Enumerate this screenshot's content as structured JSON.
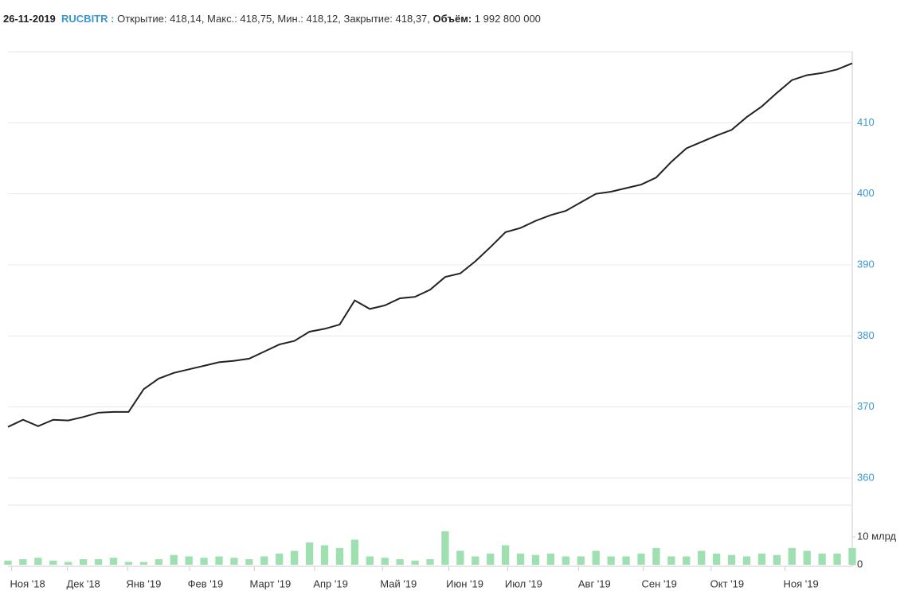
{
  "header": {
    "date": "26-11-2019",
    "ticker": "RUCBITR :",
    "ohlc": "Открытие: 418,14, Макс.: 418,75, Мин.: 418,12, Закрытие: 418,37,",
    "volume_label": "Объём:",
    "volume": "1 992 800 000"
  },
  "chart_data": [
    {
      "type": "line",
      "x": [
        0,
        1,
        2,
        3,
        4,
        5,
        6,
        7,
        8,
        9,
        10,
        11,
        12,
        13,
        14,
        15,
        16,
        17,
        18,
        19,
        20,
        21,
        22,
        23,
        24,
        25,
        26,
        27,
        28,
        29,
        30,
        31,
        32,
        33,
        34,
        35,
        36,
        37,
        38,
        39,
        40,
        41,
        42,
        43,
        44,
        45,
        46,
        47,
        48,
        49,
        50,
        51,
        52,
        53,
        54,
        55,
        56
      ],
      "series": [
        {
          "name": "RUCBITR",
          "color": "#222222",
          "values": [
            367.2,
            368.2,
            367.3,
            368.2,
            368.1,
            368.6,
            369.2,
            369.3,
            369.3,
            372.5,
            374,
            374.8,
            375.3,
            375.8,
            376.3,
            376.5,
            376.8,
            377.8,
            378.8,
            379.3,
            380.6,
            381,
            381.6,
            385,
            383.8,
            384.3,
            385.3,
            385.5,
            386.5,
            388.3,
            388.8,
            390.5,
            392.5,
            394.6,
            395.2,
            396.2,
            397,
            397.6,
            398.8,
            400,
            400.3,
            400.8,
            401.3,
            402.3,
            404.5,
            406.4,
            407.3,
            408.2,
            409,
            410.8,
            412.3,
            414.2,
            416,
            416.7,
            417,
            417.5,
            418.37
          ]
        }
      ],
      "xlim": [
        0,
        56
      ],
      "xticks": [
        {
          "value": 1.3,
          "label": "Ноя '18"
        },
        {
          "value": 5,
          "label": "Дек '18"
        },
        {
          "value": 9,
          "label": "Янв '19"
        },
        {
          "value": 13.1,
          "label": "Фев '19"
        },
        {
          "value": 17.4,
          "label": "Март '19"
        },
        {
          "value": 21.4,
          "label": "Апр '19"
        },
        {
          "value": 25.9,
          "label": "Май '19"
        },
        {
          "value": 30.3,
          "label": "Июн '19"
        },
        {
          "value": 34.2,
          "label": "Июл '19"
        },
        {
          "value": 38.9,
          "label": "Авг '19"
        },
        {
          "value": 43.2,
          "label": "Сен '19"
        },
        {
          "value": 47.7,
          "label": "Окт '19"
        },
        {
          "value": 52.6,
          "label": "Ноя '19"
        }
      ],
      "ylim": [
        360,
        420
      ],
      "yticks": [
        360,
        370,
        380,
        390,
        400,
        410
      ],
      "grid": true
    },
    {
      "type": "bar",
      "color": "#9fe0b0",
      "values": [
        1.5,
        2,
        2.5,
        1.5,
        1,
        2,
        2,
        2.5,
        1,
        1,
        2,
        3.5,
        3,
        2.5,
        3,
        2.5,
        2,
        3,
        4,
        5,
        8,
        7,
        6,
        9,
        3,
        2.5,
        2,
        1.5,
        2,
        12,
        5,
        3,
        4,
        7,
        4,
        3.5,
        4,
        3,
        3,
        5,
        3,
        3,
        4,
        6,
        3,
        3,
        5,
        4,
        3.5,
        3,
        4,
        3.5,
        6,
        5,
        4,
        4,
        6
      ],
      "ylim": [
        0,
        20
      ],
      "yticks": [
        0,
        {
          "value": 10,
          "label": "10 млрд"
        }
      ]
    }
  ]
}
